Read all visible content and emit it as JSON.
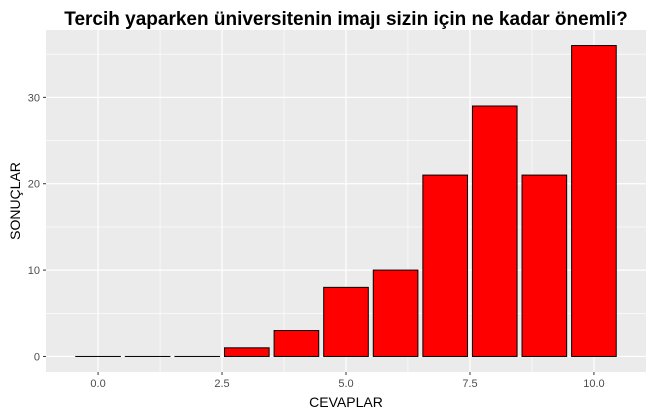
{
  "chart_data": {
    "type": "bar",
    "title": "Tercih yaparken üniversitenin imajı sizin için ne kadar önemli?",
    "xlabel": "CEVAPLAR",
    "ylabel": "SONUÇLAR",
    "x": [
      0,
      1,
      2,
      3,
      4,
      5,
      6,
      7,
      8,
      9,
      10
    ],
    "values": [
      0,
      0,
      0,
      1,
      3,
      8,
      10,
      21,
      29,
      21,
      36
    ],
    "xlim": [
      -0.5,
      10.5
    ],
    "ylim": [
      0,
      36
    ],
    "x_ticks": [
      0,
      2.5,
      5,
      7.5,
      10
    ],
    "x_tick_labels": [
      "0.0",
      "2.5",
      "5.0",
      "7.5",
      "10.0"
    ],
    "y_ticks": [
      0,
      10,
      20,
      30
    ],
    "y_tick_labels": [
      "0",
      "10",
      "20",
      "30"
    ],
    "grid": true,
    "legend": "none",
    "colors": {
      "bar_fill": "#ff0000",
      "bar_stroke": "#000000",
      "panel_background": "#ebebeb",
      "grid_major": "#ffffff"
    }
  }
}
